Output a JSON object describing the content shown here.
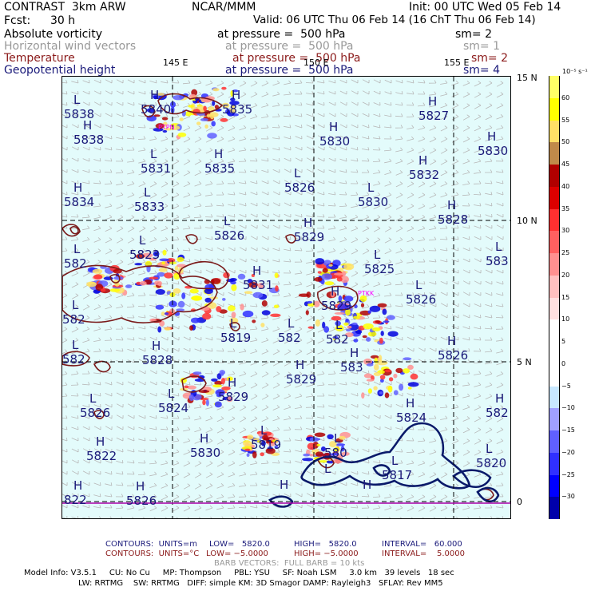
{
  "header": {
    "title": "CONTRAST  3km ARW",
    "center": "NCAR/MMM",
    "init": "Init: 00 UTC Wed 05 Feb 14",
    "fcst_label": "Fcst:",
    "fcst_value": "30 h",
    "valid": "Valid: 06 UTC Thu 06 Feb 14 (16 ChT Thu 06 Feb 14)"
  },
  "fields": [
    {
      "name": "Absolute vorticity",
      "level": "at pressure =  500 hPa",
      "sm": "sm= 2"
    },
    {
      "name": "Horizontal wind vectors",
      "level": "at pressure =  500 hPa",
      "sm": "sm= 1"
    },
    {
      "name": "Temperature",
      "level": "at pressure =  500 hPa",
      "sm": "sm= 2"
    },
    {
      "name": "Geopotential height",
      "level": "at pressure =  500 hPa",
      "sm": "sm= 4"
    }
  ],
  "map": {
    "lon_labels": [
      "145 E",
      "150 E",
      "155 E"
    ],
    "lat_labels": [
      "15 N",
      "10 N",
      "5 N",
      "0"
    ],
    "station_labels": [
      "PTPN",
      "PTKK"
    ],
    "highs_lows": [
      {
        "type": "L",
        "value": "5838"
      },
      {
        "type": "H",
        "value": "5840"
      },
      {
        "type": "H",
        "value": "5835"
      },
      {
        "type": "H",
        "value": "5827"
      },
      {
        "type": "H",
        "value": "5838"
      },
      {
        "type": "H",
        "value": "5830"
      },
      {
        "type": "H",
        "value": "5830"
      },
      {
        "type": "L",
        "value": "5831"
      },
      {
        "type": "H",
        "value": "5835"
      },
      {
        "type": "H",
        "value": "5832"
      },
      {
        "type": "L",
        "value": "5826"
      },
      {
        "type": "H",
        "value": "5834"
      },
      {
        "type": "L",
        "value": "5833"
      },
      {
        "type": "L",
        "value": "5830"
      },
      {
        "type": "H",
        "value": "5828"
      },
      {
        "type": "L",
        "value": "5826"
      },
      {
        "type": "H",
        "value": "5829"
      },
      {
        "type": "L",
        "value": "5823"
      },
      {
        "type": "L",
        "value": "5825"
      },
      {
        "type": "L",
        "value": "583"
      },
      {
        "type": "L",
        "value": "582"
      },
      {
        "type": "H",
        "value": "5831"
      },
      {
        "type": "L",
        "value": "5826"
      },
      {
        "type": "H",
        "value": "5829"
      },
      {
        "type": "L",
        "value": "582"
      },
      {
        "type": "L",
        "value": "5819"
      },
      {
        "type": "L",
        "value": "582"
      },
      {
        "type": "L",
        "value": "582"
      },
      {
        "type": "L",
        "value": "582"
      },
      {
        "type": "H",
        "value": "5826"
      },
      {
        "type": "H",
        "value": "5828"
      },
      {
        "type": "H",
        "value": "5829"
      },
      {
        "type": "H",
        "value": "583"
      },
      {
        "type": "L",
        "value": "5826"
      },
      {
        "type": "L",
        "value": "5824"
      },
      {
        "type": "H",
        "value": "5829"
      },
      {
        "type": "H",
        "value": "5824"
      },
      {
        "type": "H",
        "value": "582"
      },
      {
        "type": "H",
        "value": "5822"
      },
      {
        "type": "H",
        "value": "5830"
      },
      {
        "type": "L",
        "value": "5819"
      },
      {
        "type": "L",
        "value": "580"
      },
      {
        "type": "L",
        "value": "5817"
      },
      {
        "type": "L",
        "value": "5820"
      },
      {
        "type": "H",
        "value": "822"
      },
      {
        "type": "H",
        "value": "5826"
      },
      {
        "type": "H",
        "value": ""
      },
      {
        "type": "L",
        "value": ""
      },
      {
        "type": "H",
        "value": ""
      }
    ]
  },
  "colorbar": {
    "unit": "10⁻⁵ s⁻¹",
    "levels": [
      "60",
      "55",
      "50",
      "45",
      "40",
      "35",
      "30",
      "25",
      "20",
      "15",
      "10",
      "5",
      "0",
      "−5",
      "−10",
      "−15",
      "−20",
      "−25",
      "−30"
    ],
    "colors": [
      "#ffff66",
      "#ffff00",
      "#ffe066",
      "#c08a4a",
      "#b00000",
      "#dd0000",
      "#ff3030",
      "#ff6060",
      "#ff9090",
      "#ffc0c0",
      "#ffe0e0",
      "#ffffff",
      "#ffffff",
      "#ffffff",
      "#c8e8ff",
      "#a0a0ff",
      "#6060ff",
      "#3030ff",
      "#0000ff",
      "#0000aa"
    ]
  },
  "footer": {
    "line1_label": "CONTOURS:  UNITS=m",
    "line1_low": "LOW=   5820.0",
    "line1_high": "HIGH=   5820.0",
    "line1_interval": "INTERVAL=   60.000",
    "line2_label": "CONTOURS:  UNITS=°C",
    "line2_low": "LOW= −5.0000",
    "line2_high": "HIGH= −5.0000",
    "line2_interval": "INTERVAL=    5.0000",
    "barb": "BARB VECTORS:  FULL BARB = 10 kts",
    "model_line1": "Model Info: V3.5.1     CU: No Cu     MP: Thompson     PBL: YSU     SF: Noah LSM     3.0 km   39 levels   18 sec",
    "model_line2": "LW: RRTMG    SW: RRTMG   DIFF: simple KM: 3D Smagor DAMP: Rayleigh3   SFLAY: Rev MM5"
  }
}
